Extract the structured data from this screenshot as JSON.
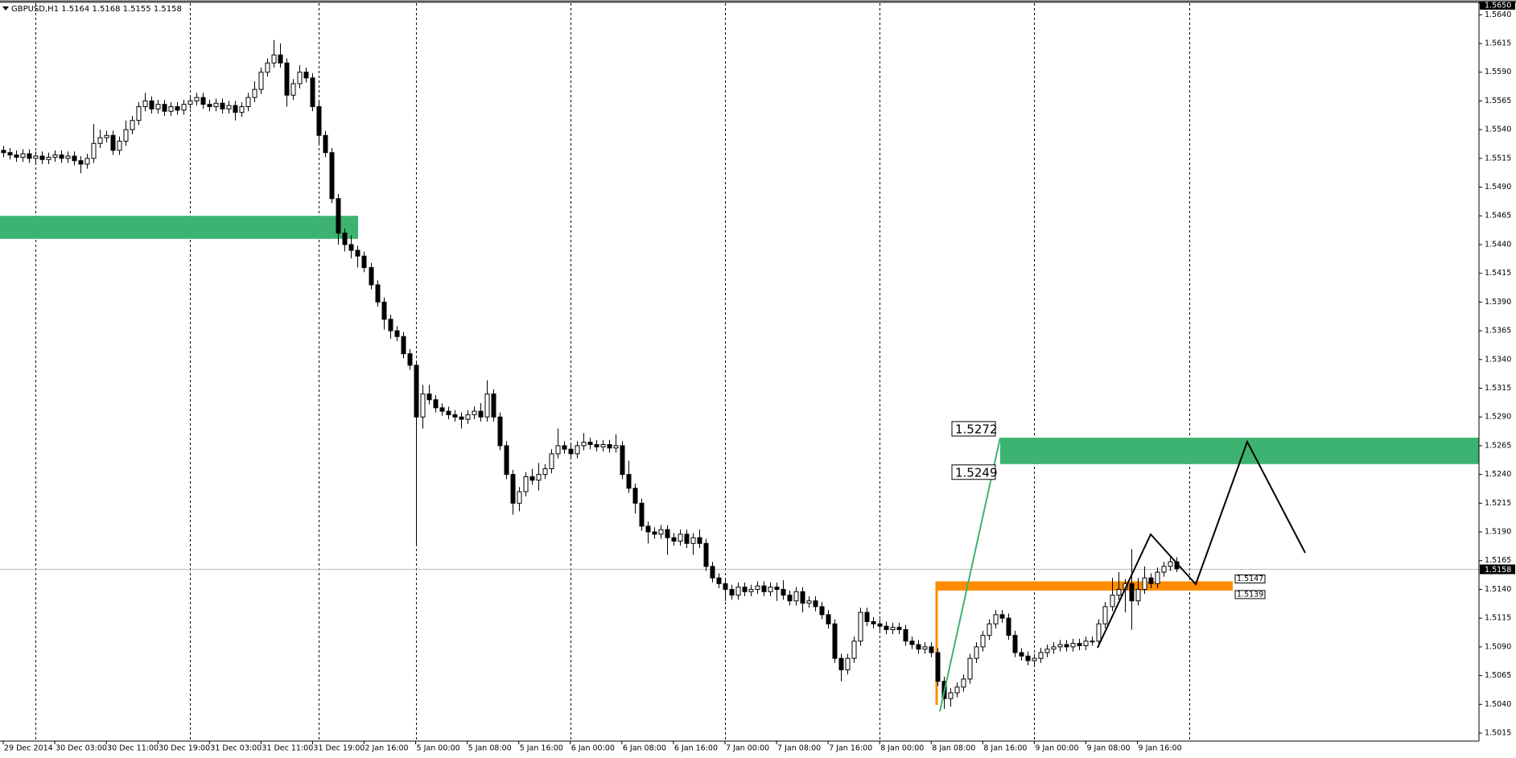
{
  "chart_data": {
    "type": "candlestick",
    "symbol": "GBPUSD,H1",
    "ylim": [
      1.5008,
      1.565
    ],
    "yticks": [
      1.5015,
      {
        "value": 1.504,
        "label": "1.5040"
      },
      1.5065,
      {
        "value": 1.509,
        "label": "1.5090"
      },
      1.5115,
      {
        "value": 1.514,
        "label": "1.5140"
      },
      1.5165,
      {
        "value": 1.519,
        "label": "1.5190"
      },
      1.5215,
      {
        "value": 1.524,
        "label": "1.5240"
      },
      1.5265,
      {
        "value": 1.529,
        "label": "1.5290"
      },
      1.5315,
      {
        "value": 1.534,
        "label": "1.5340"
      },
      1.5365,
      {
        "value": 1.539,
        "label": "1.5390"
      },
      1.5415,
      {
        "value": 1.544,
        "label": "1.5440"
      },
      1.5465,
      {
        "value": 1.549,
        "label": "1.5490"
      },
      1.5515,
      {
        "value": 1.554,
        "label": "1.5540"
      },
      1.5565,
      {
        "value": 1.559,
        "label": "1.5590"
      },
      1.5615,
      {
        "value": 1.564,
        "label": "1.5640"
      },
      {
        "value": 1.565,
        "label": "1.5650"
      }
    ],
    "xlim": [
      -0.5,
      229
    ],
    "xticks": [
      {
        "value": 0,
        "label": "29 Dec 2014"
      },
      {
        "value": 8,
        "label": "30 Dec 03:00"
      },
      {
        "value": 16,
        "label": "30 Dec 11:00"
      },
      {
        "value": 24,
        "label": "30 Dec 19:00"
      },
      {
        "value": 32,
        "label": "31 Dec 03:00"
      },
      {
        "value": 40,
        "label": "31 Dec 11:00"
      },
      {
        "value": 48,
        "label": "31 Dec 19:00"
      },
      {
        "value": 56,
        "label": "2 Jan 16:00"
      },
      {
        "value": 64,
        "label": "5 Jan 00:00"
      },
      {
        "value": 72,
        "label": "5 Jan 08:00"
      },
      {
        "value": 80,
        "label": "5 Jan 16:00"
      },
      {
        "value": 88,
        "label": "6 Jan 00:00"
      },
      {
        "value": 96,
        "label": "6 Jan 08:00"
      },
      {
        "value": 104,
        "label": "6 Jan 16:00"
      },
      {
        "value": 112,
        "label": "7 Jan 00:00"
      },
      {
        "value": 120,
        "label": "7 Jan 08:00"
      },
      {
        "value": 128,
        "label": "7 Jan 16:00"
      },
      {
        "value": 136,
        "label": "8 Jan 00:00"
      },
      {
        "value": 144,
        "label": "8 Jan 08:00"
      },
      {
        "value": 152,
        "label": "8 Jan 16:00"
      },
      {
        "value": 160,
        "label": "9 Jan 00:00"
      },
      {
        "value": 168,
        "label": "9 Jan 08:00"
      },
      {
        "value": 176,
        "label": "9 Jan 16:00"
      }
    ],
    "xgrid": [
      5,
      29,
      49,
      64,
      88,
      112,
      136,
      160,
      184
    ],
    "ohlc": [
      [
        1.5522,
        1.5526,
        1.5516,
        1.552
      ],
      [
        1.552,
        1.5524,
        1.5514,
        1.5518
      ],
      [
        1.5518,
        1.5522,
        1.5512,
        1.5516
      ],
      [
        1.5516,
        1.5523,
        1.5512,
        1.5519
      ],
      [
        1.5519,
        1.5523,
        1.5511,
        1.5515
      ],
      [
        1.5515,
        1.5521,
        1.5511,
        1.5517
      ],
      [
        1.5517,
        1.5521,
        1.551,
        1.5514
      ],
      [
        1.5514,
        1.552,
        1.551,
        1.5516
      ],
      [
        1.5516,
        1.5522,
        1.5512,
        1.5518
      ],
      [
        1.5518,
        1.5522,
        1.5511,
        1.5515
      ],
      [
        1.5515,
        1.5521,
        1.5511,
        1.5517
      ],
      [
        1.5517,
        1.5521,
        1.5509,
        1.5513
      ],
      [
        1.5513,
        1.5517,
        1.5502,
        1.551
      ],
      [
        1.551,
        1.5519,
        1.5506,
        1.5515
      ],
      [
        1.5515,
        1.5545,
        1.5511,
        1.5528
      ],
      [
        1.5528,
        1.554,
        1.5524,
        1.5533
      ],
      [
        1.5533,
        1.5539,
        1.5529,
        1.5535
      ],
      [
        1.5535,
        1.5539,
        1.5518,
        1.5522
      ],
      [
        1.5522,
        1.5534,
        1.5518,
        1.553
      ],
      [
        1.553,
        1.5548,
        1.5526,
        1.554
      ],
      [
        1.554,
        1.5552,
        1.5536,
        1.5548
      ],
      [
        1.5548,
        1.5564,
        1.5544,
        1.556
      ],
      [
        1.556,
        1.5572,
        1.5556,
        1.5565
      ],
      [
        1.5565,
        1.5569,
        1.5554,
        1.5558
      ],
      [
        1.5558,
        1.5566,
        1.5554,
        1.5562
      ],
      [
        1.5562,
        1.5566,
        1.5552,
        1.5556
      ],
      [
        1.5556,
        1.5564,
        1.5552,
        1.556
      ],
      [
        1.556,
        1.5564,
        1.5553,
        1.5557
      ],
      [
        1.5557,
        1.5566,
        1.5553,
        1.5562
      ],
      [
        1.5562,
        1.5569,
        1.5558,
        1.5565
      ],
      [
        1.5565,
        1.5572,
        1.5561,
        1.5568
      ],
      [
        1.5568,
        1.5572,
        1.5558,
        1.5562
      ],
      [
        1.5562,
        1.5566,
        1.5556,
        1.556
      ],
      [
        1.556,
        1.5567,
        1.5556,
        1.5563
      ],
      [
        1.5563,
        1.5567,
        1.5554,
        1.5558
      ],
      [
        1.5558,
        1.5565,
        1.5554,
        1.5561
      ],
      [
        1.5561,
        1.5565,
        1.5548,
        1.5555
      ],
      [
        1.5555,
        1.5564,
        1.5551,
        1.556
      ],
      [
        1.556,
        1.5572,
        1.5556,
        1.5568
      ],
      [
        1.5568,
        1.5582,
        1.5564,
        1.5575
      ],
      [
        1.5575,
        1.5594,
        1.5571,
        1.559
      ],
      [
        1.559,
        1.5602,
        1.5586,
        1.5598
      ],
      [
        1.5598,
        1.5618,
        1.5594,
        1.5605
      ],
      [
        1.5605,
        1.5615,
        1.5594,
        1.5598
      ],
      [
        1.5598,
        1.5602,
        1.556,
        1.557
      ],
      [
        1.557,
        1.5584,
        1.5566,
        1.558
      ],
      [
        1.558,
        1.5596,
        1.5576,
        1.559
      ],
      [
        1.559,
        1.5594,
        1.5581,
        1.5585
      ],
      [
        1.5585,
        1.5589,
        1.5556,
        1.556
      ],
      [
        1.556,
        1.5564,
        1.5528,
        1.5535
      ],
      [
        1.5535,
        1.5539,
        1.5516,
        1.552
      ],
      [
        1.552,
        1.5524,
        1.5476,
        1.548
      ],
      [
        1.548,
        1.5484,
        1.544,
        1.545
      ],
      [
        1.545,
        1.5454,
        1.5434,
        1.544
      ],
      [
        1.544,
        1.5448,
        1.5428,
        1.5435
      ],
      [
        1.5435,
        1.5439,
        1.542,
        1.543
      ],
      [
        1.543,
        1.5434,
        1.5416,
        1.542
      ],
      [
        1.542,
        1.5424,
        1.5401,
        1.5405
      ],
      [
        1.5405,
        1.5409,
        1.5386,
        1.539
      ],
      [
        1.539,
        1.5394,
        1.5366,
        1.5375
      ],
      [
        1.5375,
        1.5379,
        1.5358,
        1.5365
      ],
      [
        1.5365,
        1.5369,
        1.5356,
        1.536
      ],
      [
        1.536,
        1.5364,
        1.5341,
        1.5345
      ],
      [
        1.5345,
        1.5349,
        1.5331,
        1.5335
      ],
      [
        1.5335,
        1.5339,
        1.5179,
        1.529
      ],
      [
        1.529,
        1.5318,
        1.528,
        1.531
      ],
      [
        1.531,
        1.5318,
        1.5301,
        1.5305
      ],
      [
        1.5305,
        1.5309,
        1.5294,
        1.5298
      ],
      [
        1.5298,
        1.5302,
        1.5291,
        1.5295
      ],
      [
        1.5295,
        1.5299,
        1.5288,
        1.5292
      ],
      [
        1.5292,
        1.5296,
        1.5286,
        1.529
      ],
      [
        1.529,
        1.5294,
        1.528,
        1.5288
      ],
      [
        1.5288,
        1.5296,
        1.5284,
        1.5292
      ],
      [
        1.5292,
        1.5299,
        1.5288,
        1.5295
      ],
      [
        1.5295,
        1.5302,
        1.5286,
        1.529
      ],
      [
        1.529,
        1.5322,
        1.5286,
        1.531
      ],
      [
        1.531,
        1.5314,
        1.5286,
        1.529
      ],
      [
        1.529,
        1.5294,
        1.5261,
        1.5265
      ],
      [
        1.5265,
        1.5269,
        1.5236,
        1.524
      ],
      [
        1.524,
        1.5244,
        1.5205,
        1.5215
      ],
      [
        1.5215,
        1.5229,
        1.5208,
        1.5225
      ],
      [
        1.5225,
        1.5242,
        1.5221,
        1.5238
      ],
      [
        1.5238,
        1.5245,
        1.5231,
        1.5235
      ],
      [
        1.5235,
        1.525,
        1.5226,
        1.524
      ],
      [
        1.524,
        1.5249,
        1.5236,
        1.5245
      ],
      [
        1.5245,
        1.5262,
        1.5241,
        1.5258
      ],
      [
        1.5258,
        1.528,
        1.5254,
        1.5265
      ],
      [
        1.5265,
        1.5269,
        1.5258,
        1.5262
      ],
      [
        1.5262,
        1.5266,
        1.5254,
        1.5258
      ],
      [
        1.5258,
        1.5269,
        1.5254,
        1.5265
      ],
      [
        1.5265,
        1.5276,
        1.5261,
        1.5268
      ],
      [
        1.5268,
        1.5272,
        1.5262,
        1.5266
      ],
      [
        1.5266,
        1.527,
        1.526,
        1.5264
      ],
      [
        1.5264,
        1.527,
        1.526,
        1.5266
      ],
      [
        1.5266,
        1.527,
        1.5259,
        1.5263
      ],
      [
        1.5263,
        1.5275,
        1.5259,
        1.5265
      ],
      [
        1.5265,
        1.5269,
        1.5236,
        1.524
      ],
      [
        1.524,
        1.5252,
        1.5224,
        1.5228
      ],
      [
        1.5228,
        1.5232,
        1.5206,
        1.5215
      ],
      [
        1.5215,
        1.5219,
        1.5191,
        1.5195
      ],
      [
        1.5195,
        1.5199,
        1.518,
        1.519
      ],
      [
        1.519,
        1.5194,
        1.5184,
        1.5188
      ],
      [
        1.5188,
        1.5196,
        1.5184,
        1.5192
      ],
      [
        1.5192,
        1.5196,
        1.517,
        1.5185
      ],
      [
        1.5185,
        1.5189,
        1.5178,
        1.5182
      ],
      [
        1.5182,
        1.5192,
        1.5178,
        1.5188
      ],
      [
        1.5188,
        1.5192,
        1.5176,
        1.518
      ],
      [
        1.518,
        1.5189,
        1.517,
        1.5185
      ],
      [
        1.5185,
        1.5192,
        1.5176,
        1.518
      ],
      [
        1.518,
        1.5184,
        1.5156,
        1.516
      ],
      [
        1.516,
        1.5164,
        1.5146,
        1.515
      ],
      [
        1.515,
        1.5154,
        1.5141,
        1.5145
      ],
      [
        1.5145,
        1.5149,
        1.513,
        1.514
      ],
      [
        1.514,
        1.5144,
        1.5131,
        1.5135
      ],
      [
        1.5135,
        1.5146,
        1.5131,
        1.5142
      ],
      [
        1.5142,
        1.5146,
        1.5134,
        1.5138
      ],
      [
        1.5138,
        1.5144,
        1.5134,
        1.514
      ],
      [
        1.514,
        1.5147,
        1.5136,
        1.5143
      ],
      [
        1.5143,
        1.5147,
        1.5134,
        1.5138
      ],
      [
        1.5138,
        1.5146,
        1.5134,
        1.5142
      ],
      [
        1.5142,
        1.5146,
        1.513,
        1.514
      ],
      [
        1.514,
        1.5148,
        1.5131,
        1.5135
      ],
      [
        1.5135,
        1.5139,
        1.5126,
        1.513
      ],
      [
        1.513,
        1.5142,
        1.5126,
        1.5138
      ],
      [
        1.5138,
        1.5142,
        1.512,
        1.5128
      ],
      [
        1.5128,
        1.5134,
        1.5124,
        1.513
      ],
      [
        1.513,
        1.5134,
        1.5121,
        1.5125
      ],
      [
        1.5125,
        1.5129,
        1.5114,
        1.5118
      ],
      [
        1.5118,
        1.5122,
        1.5106,
        1.511
      ],
      [
        1.511,
        1.5114,
        1.5076,
        1.508
      ],
      [
        1.508,
        1.5084,
        1.506,
        1.507
      ],
      [
        1.507,
        1.5084,
        1.5066,
        1.508
      ],
      [
        1.508,
        1.5099,
        1.5076,
        1.5095
      ],
      [
        1.5095,
        1.5124,
        1.5091,
        1.512
      ],
      [
        1.512,
        1.5124,
        1.5108,
        1.5112
      ],
      [
        1.5112,
        1.5116,
        1.5106,
        1.511
      ],
      [
        1.511,
        1.5114,
        1.5104,
        1.5108
      ],
      [
        1.5108,
        1.5112,
        1.5101,
        1.5105
      ],
      [
        1.5105,
        1.5111,
        1.5101,
        1.5107
      ],
      [
        1.5107,
        1.5111,
        1.5101,
        1.5105
      ],
      [
        1.5105,
        1.5109,
        1.5091,
        1.5095
      ],
      [
        1.5095,
        1.5099,
        1.5088,
        1.5092
      ],
      [
        1.5092,
        1.5096,
        1.5084,
        1.5088
      ],
      [
        1.5088,
        1.5094,
        1.5084,
        1.509
      ],
      [
        1.509,
        1.5094,
        1.5081,
        1.5085
      ],
      [
        1.5085,
        1.5089,
        1.5056,
        1.506
      ],
      [
        1.506,
        1.5064,
        1.5036,
        1.5045
      ],
      [
        1.5045,
        1.5054,
        1.5038,
        1.505
      ],
      [
        1.505,
        1.5059,
        1.5046,
        1.5055
      ],
      [
        1.5055,
        1.5066,
        1.5051,
        1.5062
      ],
      [
        1.5062,
        1.5084,
        1.5058,
        1.508
      ],
      [
        1.508,
        1.5094,
        1.5076,
        1.509
      ],
      [
        1.509,
        1.5104,
        1.5086,
        1.51
      ],
      [
        1.51,
        1.5114,
        1.5096,
        1.511
      ],
      [
        1.511,
        1.5122,
        1.5106,
        1.5118
      ],
      [
        1.5118,
        1.5122,
        1.5111,
        1.5115
      ],
      [
        1.5115,
        1.5119,
        1.5096,
        1.51
      ],
      [
        1.51,
        1.5104,
        1.5081,
        1.5085
      ],
      [
        1.5085,
        1.5089,
        1.5078,
        1.5082
      ],
      [
        1.5082,
        1.5086,
        1.5074,
        1.5078
      ],
      [
        1.5078,
        1.5084,
        1.5074,
        1.508
      ],
      [
        1.508,
        1.5089,
        1.5076,
        1.5085
      ],
      [
        1.5085,
        1.5092,
        1.5081,
        1.5088
      ],
      [
        1.5088,
        1.5094,
        1.5084,
        1.509
      ],
      [
        1.509,
        1.5096,
        1.5086,
        1.5092
      ],
      [
        1.5092,
        1.5096,
        1.5086,
        1.509
      ],
      [
        1.509,
        1.5097,
        1.5086,
        1.5093
      ],
      [
        1.5093,
        1.5097,
        1.5087,
        1.5091
      ],
      [
        1.5091,
        1.5099,
        1.5087,
        1.5095
      ],
      [
        1.5095,
        1.5099,
        1.5091,
        1.5095
      ],
      [
        1.5095,
        1.5114,
        1.5091,
        1.511
      ],
      [
        1.511,
        1.5129,
        1.5106,
        1.5125
      ],
      [
        1.5125,
        1.515,
        1.5121,
        1.5135
      ],
      [
        1.5135,
        1.5155,
        1.5131,
        1.514
      ],
      [
        1.514,
        1.5149,
        1.512,
        1.5145
      ],
      [
        1.5145,
        1.5175,
        1.5105,
        1.513
      ],
      [
        1.513,
        1.515,
        1.5126,
        1.514
      ],
      [
        1.514,
        1.516,
        1.5136,
        1.515
      ],
      [
        1.515,
        1.5154,
        1.5141,
        1.5145
      ],
      [
        1.5145,
        1.5159,
        1.5141,
        1.5155
      ],
      [
        1.5155,
        1.5164,
        1.5151,
        1.516
      ],
      [
        1.516,
        1.5168,
        1.5156,
        1.5164
      ],
      [
        1.5164,
        1.5168,
        1.5155,
        1.5158
      ]
    ],
    "zones": [
      {
        "color": "#3cb371",
        "top": 1.5465,
        "bottom": 1.5445
      },
      {
        "color": "#3cb371",
        "top": 1.5272,
        "bottom": 1.5249
      },
      {
        "color": "#ff8c00",
        "top": 1.5147,
        "bottom": 1.5139
      }
    ]
  }
}
